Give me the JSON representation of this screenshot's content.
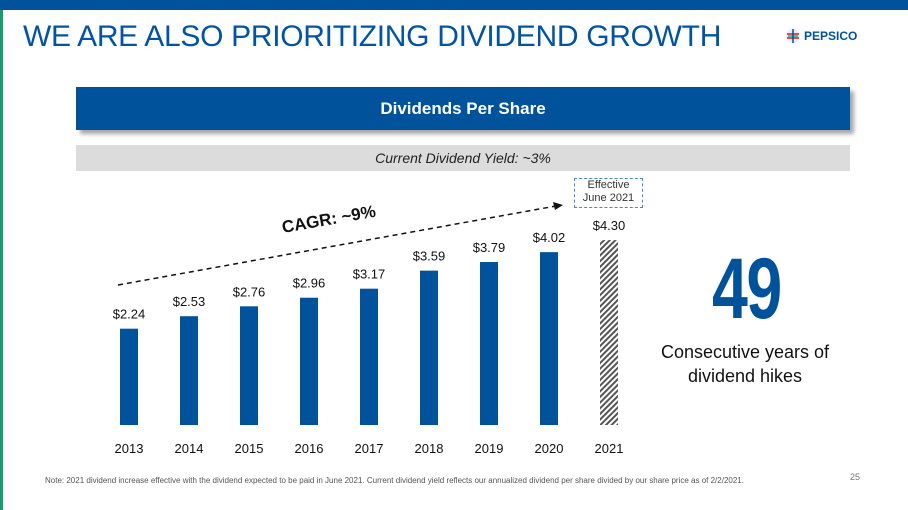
{
  "title": "WE ARE ALSO PRIORITIZING DIVIDEND GROWTH",
  "logo": "PEPSICO",
  "banner": "Dividends Per Share",
  "yield": "Current Dividend Yield: ~3%",
  "effective": {
    "line1": "Effective",
    "line2": "June 2021"
  },
  "cagr": "CAGR: ~9%",
  "big_number": "49",
  "big_caption": {
    "line1": "Consecutive years of",
    "line2": "dividend hikes"
  },
  "note": "Note: 2021 dividend increase effective with the dividend expected to be paid in June 2021. Current dividend yield reflects our annualized dividend per share divided by our share price as of 2/2/2021.",
  "page": "25",
  "colors": {
    "brand": "#00529b",
    "accent_edge": "#1a9a6c"
  },
  "chart_data": {
    "type": "bar",
    "categories": [
      "2013",
      "2014",
      "2015",
      "2016",
      "2017",
      "2018",
      "2019",
      "2020",
      "2021"
    ],
    "values": [
      2.24,
      2.53,
      2.76,
      2.96,
      3.17,
      3.59,
      3.79,
      4.02,
      4.3
    ],
    "labels": [
      "$2.24",
      "$2.53",
      "$2.76",
      "$2.96",
      "$3.17",
      "$3.59",
      "$3.79",
      "$4.02",
      "$4.30"
    ],
    "hatched": [
      false,
      false,
      false,
      false,
      false,
      false,
      false,
      false,
      true
    ],
    "title": "Dividends Per Share",
    "grid": false
  }
}
